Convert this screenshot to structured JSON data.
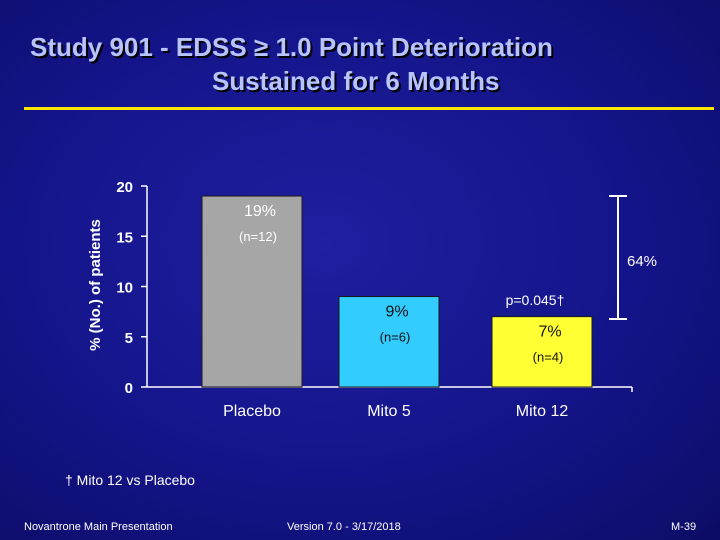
{
  "title": {
    "line1": "Study 901 - EDSS ≥ 1.0 Point Deterioration",
    "line2": "Sustained for 6 Months"
  },
  "footnote": "† Mito 12 vs Placebo",
  "footer": {
    "left": "Novantrone Main Presentation",
    "center": "Version 7.0 - 3/17/2018",
    "right": "M-39"
  },
  "chart_data": {
    "type": "bar",
    "ylabel": "% (No.) of patients",
    "ylim": [
      0,
      20
    ],
    "yticks": [
      "0",
      "5",
      "10",
      "15",
      "20"
    ],
    "categories": [
      "Placebo",
      "Mito 5",
      "Mito 12"
    ],
    "values": [
      19,
      9,
      7
    ],
    "labels": [
      "19%",
      "9%",
      "7%"
    ],
    "n_labels": [
      "(n=12)",
      "(n=6)",
      "(n=4)"
    ],
    "colors": [
      "#a6a6a6",
      "#33ccff",
      "#ffff33"
    ],
    "annotations": {
      "reduction": "64%",
      "pvalue": "p=0.045†"
    }
  }
}
